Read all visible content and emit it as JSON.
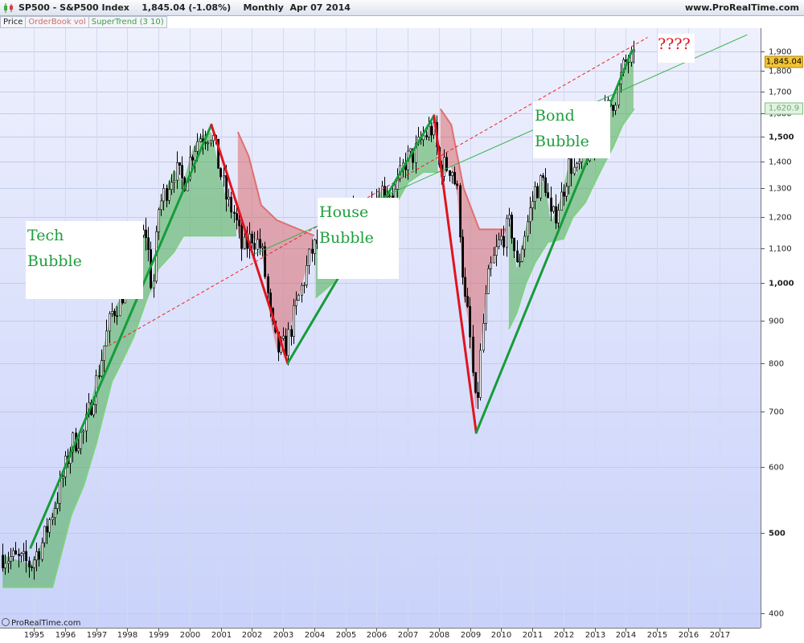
{
  "header": {
    "symbol": "SP500 - S&P500 Index",
    "last": "1,845.04 (-1.08%)",
    "period": "Monthly  Apr 07 2014",
    "site": "www.ProRealTime.com"
  },
  "legend": {
    "price": "Price",
    "orderbook": "OrderBook vol",
    "supertrend": "SuperTrend (3 10)"
  },
  "copyright": "ProRealTime.com",
  "colors": {
    "background_top": "#e9ecfc",
    "background_bottom": "#cfd7fb",
    "candle": "#000000",
    "supertrend_up": "#4caf50",
    "supertrend_down": "#d9534f",
    "trend_line": "#169c3a",
    "crash_line": "#e0141e",
    "last_price_tag": "#f3c436"
  },
  "annotations": {
    "tech": [
      "Tech",
      "Bubble"
    ],
    "house": [
      "House",
      "Bubble"
    ],
    "bond": [
      "Bond",
      "Bubble"
    ],
    "question": "????"
  },
  "chart_data": {
    "type": "candlestick",
    "title": "SP500 - S&P500 Index",
    "period": "Monthly",
    "last_price": "1,845.04",
    "supertrend_last": "1,620.9",
    "xlim": [
      1994.6,
      2018.0
    ],
    "ylim": [
      350,
      2000
    ],
    "y_scale": "log",
    "y_ticks": [
      400,
      500,
      600,
      700,
      800,
      900,
      1000,
      1100,
      1200,
      1300,
      1400,
      1500,
      1600,
      1700,
      1800,
      1900
    ],
    "y_tick_labels": [
      "400",
      "500",
      "600",
      "700",
      "800",
      "900",
      "1,000",
      "1,100",
      "1,200",
      "1,300",
      "1,400",
      "1,500",
      "1,600",
      "1,700",
      "1,800",
      "1,900"
    ],
    "x_ticks": [
      "1995",
      "1996",
      "1997",
      "1998",
      "1999",
      "2000",
      "2001",
      "2002",
      "2003",
      "2004",
      "2005",
      "2006",
      "2007",
      "2008",
      "2009",
      "2010",
      "2011",
      "2012",
      "2013",
      "2014",
      "2015",
      "2016",
      "2017"
    ],
    "price_path": [
      [
        1994.0,
        470
      ],
      [
        1994.9,
        458
      ],
      [
        1995.3,
        490
      ],
      [
        1995.8,
        560
      ],
      [
        1996.2,
        640
      ],
      [
        1996.6,
        660
      ],
      [
        1997.0,
        760
      ],
      [
        1997.5,
        920
      ],
      [
        1997.8,
        960
      ],
      [
        1998.2,
        1110
      ],
      [
        1998.6,
        1150
      ],
      [
        1998.8,
        960
      ],
      [
        1999.0,
        1230
      ],
      [
        1999.5,
        1370
      ],
      [
        1999.8,
        1320
      ],
      [
        2000.1,
        1450
      ],
      [
        2000.3,
        1500
      ],
      [
        2000.7,
        1520
      ],
      [
        2000.9,
        1400
      ],
      [
        2001.2,
        1250
      ],
      [
        2001.4,
        1220
      ],
      [
        2001.7,
        1090
      ],
      [
        2002.0,
        1140
      ],
      [
        2002.3,
        1100
      ],
      [
        2002.6,
        900
      ],
      [
        2002.8,
        830
      ],
      [
        2003.1,
        840
      ],
      [
        2003.3,
        900
      ],
      [
        2003.6,
        990
      ],
      [
        2003.9,
        1090
      ],
      [
        2004.2,
        1130
      ],
      [
        2004.6,
        1110
      ],
      [
        2004.9,
        1180
      ],
      [
        2005.2,
        1200
      ],
      [
        2005.6,
        1230
      ],
      [
        2005.9,
        1250
      ],
      [
        2006.2,
        1300
      ],
      [
        2006.6,
        1280
      ],
      [
        2006.9,
        1400
      ],
      [
        2007.2,
        1430
      ],
      [
        2007.5,
        1500
      ],
      [
        2007.8,
        1540
      ],
      [
        2008.0,
        1380
      ],
      [
        2008.4,
        1380
      ],
      [
        2008.6,
        1270
      ],
      [
        2008.8,
        960
      ],
      [
        2008.95,
        900
      ],
      [
        2009.1,
        760
      ],
      [
        2009.2,
        690
      ],
      [
        2009.4,
        880
      ],
      [
        2009.6,
        1020
      ],
      [
        2009.9,
        1110
      ],
      [
        2010.3,
        1180
      ],
      [
        2010.5,
        1040
      ],
      [
        2010.8,
        1170
      ],
      [
        2011.1,
        1300
      ],
      [
        2011.4,
        1330
      ],
      [
        2011.6,
        1180
      ],
      [
        2011.9,
        1260
      ],
      [
        2012.2,
        1400
      ],
      [
        2012.4,
        1350
      ],
      [
        2012.7,
        1440
      ],
      [
        2012.9,
        1420
      ],
      [
        2013.2,
        1570
      ],
      [
        2013.5,
        1640
      ],
      [
        2013.7,
        1690
      ],
      [
        2013.95,
        1830
      ],
      [
        2014.1,
        1860
      ],
      [
        2014.27,
        1845
      ]
    ],
    "supertrend": [
      [
        1994.0,
        430,
        "up"
      ],
      [
        1995.6,
        430,
        "up"
      ],
      [
        1995.9,
        475,
        "up"
      ],
      [
        1996.2,
        525,
        "up"
      ],
      [
        1996.6,
        570,
        "up"
      ],
      [
        1997.0,
        640,
        "up"
      ],
      [
        1997.5,
        760,
        "up"
      ],
      [
        1997.8,
        800,
        "up"
      ],
      [
        1998.2,
        860,
        "up"
      ],
      [
        1998.6,
        950,
        "up"
      ],
      [
        1999.0,
        1040,
        "up"
      ],
      [
        1999.5,
        1090,
        "up"
      ],
      [
        1999.8,
        1140,
        "up"
      ],
      [
        2001.5,
        1140,
        "up"
      ],
      [
        2001.55,
        1520,
        "down"
      ],
      [
        2001.9,
        1420,
        "down"
      ],
      [
        2002.3,
        1240,
        "down"
      ],
      [
        2002.8,
        1190,
        "down"
      ],
      [
        2004.0,
        1140,
        "down"
      ],
      [
        2004.05,
        960,
        "up"
      ],
      [
        2004.6,
        1000,
        "up"
      ],
      [
        2004.9,
        1060,
        "up"
      ],
      [
        2005.3,
        1090,
        "up"
      ],
      [
        2005.8,
        1150,
        "up"
      ],
      [
        2006.2,
        1200,
        "up"
      ],
      [
        2006.6,
        1240,
        "up"
      ],
      [
        2007.0,
        1320,
        "up"
      ],
      [
        2007.5,
        1360,
        "up"
      ],
      [
        2008.0,
        1360,
        "up"
      ],
      [
        2008.05,
        1620,
        "down"
      ],
      [
        2008.4,
        1550,
        "down"
      ],
      [
        2008.8,
        1300,
        "down"
      ],
      [
        2009.3,
        1160,
        "down"
      ],
      [
        2010.2,
        1160,
        "down"
      ],
      [
        2010.25,
        880,
        "up"
      ],
      [
        2010.5,
        920,
        "up"
      ],
      [
        2010.8,
        1000,
        "up"
      ],
      [
        2011.1,
        1060,
        "up"
      ],
      [
        2011.5,
        1120,
        "up"
      ],
      [
        2012.0,
        1130,
        "up"
      ],
      [
        2012.3,
        1200,
        "up"
      ],
      [
        2012.7,
        1250,
        "up"
      ],
      [
        2013.0,
        1320,
        "up"
      ],
      [
        2013.3,
        1390,
        "up"
      ],
      [
        2013.6,
        1460,
        "up"
      ],
      [
        2013.9,
        1550,
        "up"
      ],
      [
        2014.27,
        1620.9,
        "up"
      ]
    ],
    "trend_lines": [
      {
        "name": "tech-rise",
        "from": [
          1994.9,
          480
        ],
        "to": [
          2000.7,
          1550
        ],
        "color": "green"
      },
      {
        "name": "tech-crash",
        "from": [
          2000.7,
          1550
        ],
        "to": [
          2003.15,
          800
        ],
        "color": "red"
      },
      {
        "name": "house-rise",
        "from": [
          2003.15,
          800
        ],
        "to": [
          2007.85,
          1590
        ],
        "color": "green"
      },
      {
        "name": "house-crash",
        "from": [
          2007.85,
          1590
        ],
        "to": [
          2009.2,
          660
        ],
        "color": "red"
      },
      {
        "name": "bond-rise",
        "from": [
          2009.2,
          660
        ],
        "to": [
          2014.2,
          1905
        ],
        "color": "green"
      }
    ],
    "channel_lines": [
      {
        "name": "long-uptrend",
        "from": [
          2002.0,
          1080
        ],
        "to": [
          2017.9,
          1990
        ],
        "color": "green",
        "style": "solid"
      },
      {
        "name": "upper-channel",
        "from": [
          1997.4,
          840
        ],
        "to": [
          2014.7,
          1975
        ],
        "color": "red",
        "style": "dashed"
      }
    ]
  }
}
